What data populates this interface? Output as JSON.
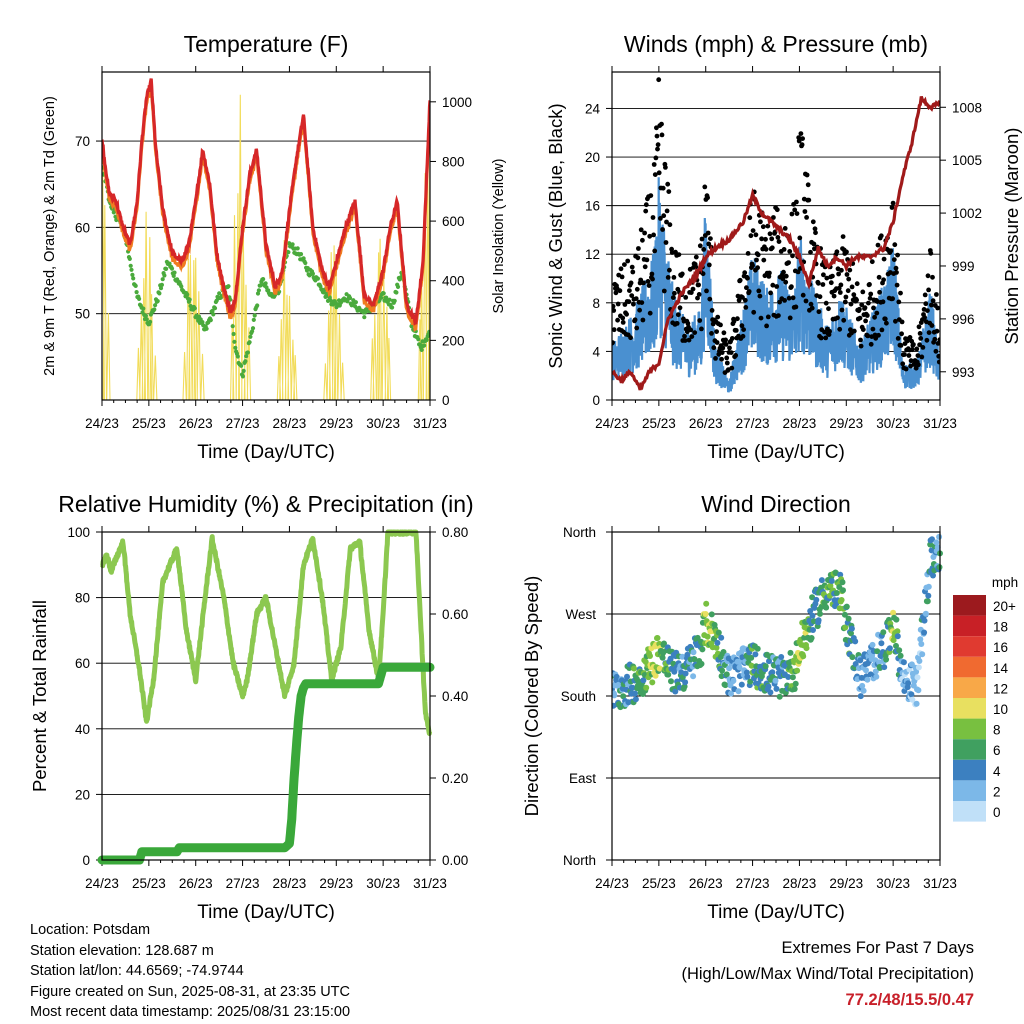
{
  "charts_common": {
    "x_ticks": [
      "24/23",
      "25/23",
      "26/23",
      "27/23",
      "28/23",
      "29/23",
      "30/23",
      "31/23"
    ],
    "x_label": "Time (Day/UTC)"
  },
  "chart_data": [
    {
      "type": "line",
      "title": "Temperature (F)",
      "xlabel": "Time (Day/UTC)",
      "ylabel": "2m & 9m T (Red, Orange) & 2m Td (Green)",
      "ylabel_right": "Solar Insolation (Yellow)",
      "xlim": [
        0,
        7
      ],
      "ylim": [
        40,
        78
      ],
      "ylim_right": [
        0,
        1100
      ],
      "yticks": [
        50,
        60,
        70
      ],
      "yticks_right": [
        0,
        200,
        400,
        600,
        800,
        1000
      ],
      "colors": {
        "t2m": "#d62728",
        "t9m": "#f07c20",
        "td": "#4aaa3c",
        "solar": "#f2dc5a"
      },
      "series": [
        {
          "key": "t2m",
          "x": [
            0,
            0.15,
            0.3,
            0.45,
            0.6,
            0.75,
            0.85,
            0.95,
            1.05,
            1.15,
            1.3,
            1.5,
            1.7,
            1.85,
            2.0,
            2.15,
            2.3,
            2.45,
            2.6,
            2.75,
            2.85,
            3.0,
            3.15,
            3.3,
            3.5,
            3.7,
            3.85,
            4.0,
            4.15,
            4.3,
            4.5,
            4.7,
            4.85,
            5.0,
            5.2,
            5.4,
            5.6,
            5.8,
            6.0,
            6.15,
            6.3,
            6.5,
            6.7,
            6.85,
            7.0
          ],
          "values": [
            70,
            64,
            63,
            60,
            58,
            63,
            70,
            75,
            77,
            69,
            62,
            57,
            56,
            58,
            63,
            69,
            65,
            57,
            53,
            50,
            52,
            60,
            66,
            69,
            58,
            53,
            55,
            62,
            68,
            73,
            60,
            55,
            53,
            56,
            60,
            63,
            52,
            51,
            55,
            60,
            63,
            51,
            49,
            56,
            75
          ]
        },
        {
          "key": "td",
          "x": [
            0,
            0.1,
            0.2,
            0.35,
            0.5,
            0.6,
            0.75,
            0.9,
            1.0,
            1.2,
            1.4,
            1.6,
            1.8,
            2.0,
            2.2,
            2.35,
            2.5,
            2.7,
            2.85,
            3.0,
            3.2,
            3.4,
            3.6,
            3.8,
            4.0,
            4.2,
            4.4,
            4.6,
            4.8,
            5.0,
            5.2,
            5.4,
            5.6,
            5.8,
            6.0,
            6.2,
            6.4,
            6.6,
            6.8,
            7.0
          ],
          "values": [
            67,
            65,
            62,
            61,
            59,
            56,
            52,
            50,
            49,
            52,
            56,
            54,
            52,
            50,
            48,
            50,
            52,
            53,
            46,
            43,
            48,
            54,
            52,
            53,
            58,
            57,
            55,
            54,
            52,
            51,
            52,
            51,
            50,
            51,
            52,
            51,
            55,
            49,
            46,
            48
          ]
        },
        {
          "key": "solar",
          "note": "daily insolation peaks",
          "day_peaks": [
            1050,
            700,
            750,
            1100,
            630,
            600,
            650,
            900
          ]
        }
      ]
    },
    {
      "type": "scatter",
      "title": "Winds (mph) & Pressure (mb)",
      "xlabel": "Time (Day/UTC)",
      "ylabel": "Sonic Wind & Gust (Blue, Black)",
      "ylabel_right": "Station Pressure (Maroon)",
      "xlim": [
        0,
        7
      ],
      "ylim": [
        0,
        27
      ],
      "ylim_right": [
        991.4,
        1010
      ],
      "yticks": [
        0,
        4,
        8,
        12,
        16,
        20,
        24
      ],
      "yticks_right": [
        993,
        996,
        999,
        1002,
        1005,
        1008
      ],
      "colors": {
        "wind": "#4a90d0",
        "gust": "#000000",
        "pressure": "#a01a1a"
      },
      "series": [
        {
          "key": "pressure",
          "x": [
            0,
            0.2,
            0.4,
            0.6,
            0.8,
            1.0,
            1.2,
            1.5,
            1.8,
            2.0,
            2.2,
            2.5,
            2.8,
            3.0,
            3.2,
            3.4,
            3.6,
            3.8,
            4.0,
            4.2,
            4.4,
            4.6,
            4.8,
            5.0,
            5.2,
            5.5,
            5.8,
            6.0,
            6.2,
            6.4,
            6.6,
            6.8,
            7.0
          ],
          "values": [
            993,
            992.5,
            993,
            992,
            993,
            993.5,
            996,
            997.5,
            998.5,
            999.5,
            1000,
            1000.5,
            1001.5,
            1003,
            1002,
            1001.5,
            1001,
            1000.5,
            999.5,
            998,
            1000,
            999,
            999.5,
            999,
            999.5,
            999.5,
            1000,
            1001.5,
            1004,
            1006,
            1008.5,
            1008,
            1008.2
          ]
        },
        {
          "key": "wind_mean",
          "x": [
            0,
            0.5,
            0.9,
            1.0,
            1.3,
            1.6,
            1.9,
            2.0,
            2.2,
            2.5,
            2.8,
            3.0,
            3.3,
            3.6,
            3.9,
            4.0,
            4.3,
            4.6,
            4.9,
            5.0,
            5.3,
            5.6,
            5.9,
            6.0,
            6.2,
            6.5,
            6.8,
            7.0
          ],
          "values": [
            3,
            5,
            8,
            12,
            6,
            4,
            5,
            11,
            3,
            1,
            5,
            8,
            6,
            7,
            6,
            9,
            6,
            4,
            6,
            5,
            3,
            5,
            7,
            9,
            2,
            2,
            6,
            2
          ]
        },
        {
          "key": "gust_mean",
          "x": [
            0,
            0.5,
            0.9,
            1.0,
            1.3,
            1.6,
            1.9,
            2.0,
            2.2,
            2.5,
            2.8,
            3.0,
            3.3,
            3.6,
            3.9,
            4.0,
            4.3,
            4.6,
            4.9,
            5.0,
            5.3,
            5.6,
            5.9,
            6.0,
            6.2,
            6.5,
            6.8,
            7.0
          ],
          "values": [
            7,
            8,
            13,
            18,
            9,
            7,
            9,
            14,
            5,
            3,
            8,
            12,
            10,
            11,
            11,
            16,
            10,
            7,
            9,
            9,
            6,
            8,
            11,
            13,
            4,
            3,
            9,
            4
          ]
        }
      ]
    },
    {
      "type": "line",
      "title": "Relative Humidity (%) & Precipitation (in)",
      "xlabel": "Time (Day/UTC)",
      "ylabel": "Percent & Total Rainfall",
      "xlim": [
        0,
        7
      ],
      "ylim": [
        0,
        100
      ],
      "ylim_right": [
        0,
        0.8
      ],
      "yticks": [
        0,
        20,
        40,
        60,
        80,
        100
      ],
      "yticks_right": [
        "0.00",
        "0.20",
        "0.40",
        "0.60",
        "0.80"
      ],
      "colors": {
        "rh": "#8cc850",
        "precip": "#3aa83a"
      },
      "series": [
        {
          "key": "rh",
          "x": [
            0,
            0.1,
            0.2,
            0.3,
            0.45,
            0.6,
            0.8,
            0.95,
            1.1,
            1.3,
            1.6,
            1.8,
            2.0,
            2.2,
            2.35,
            2.6,
            2.8,
            3.0,
            3.1,
            3.3,
            3.5,
            3.7,
            3.9,
            4.1,
            4.3,
            4.5,
            4.7,
            4.9,
            5.1,
            5.3,
            5.5,
            5.7,
            5.9,
            6.0,
            6.1,
            6.3,
            6.5,
            6.7,
            6.9,
            7.0
          ],
          "values": [
            90,
            93,
            88,
            92,
            97,
            75,
            58,
            42,
            55,
            85,
            95,
            70,
            55,
            80,
            98,
            80,
            60,
            50,
            55,
            75,
            80,
            65,
            50,
            60,
            90,
            98,
            80,
            55,
            65,
            95,
            97,
            70,
            55,
            75,
            100,
            100,
            100,
            100,
            45,
            38
          ]
        },
        {
          "key": "precip",
          "x": [
            0,
            0.8,
            0.85,
            1.6,
            1.65,
            2.5,
            3.5,
            3.9,
            4.0,
            4.05,
            4.1,
            4.15,
            4.2,
            4.25,
            4.3,
            4.35,
            4.4,
            5.0,
            5.5,
            5.9,
            6.0,
            6.5,
            7.0
          ],
          "values": [
            0,
            0,
            0.02,
            0.02,
            0.03,
            0.03,
            0.03,
            0.03,
            0.04,
            0.1,
            0.2,
            0.28,
            0.35,
            0.4,
            0.42,
            0.43,
            0.43,
            0.43,
            0.43,
            0.43,
            0.47,
            0.47,
            0.47
          ]
        }
      ]
    },
    {
      "type": "scatter",
      "title": "Wind Direction",
      "xlabel": "Time (Day/UTC)",
      "ylabel": "Direction (Colored By Speed)",
      "xlim": [
        0,
        7
      ],
      "ylim": [
        0,
        360
      ],
      "ytick_values": [
        0,
        90,
        180,
        270,
        360
      ],
      "yticks": [
        "North",
        "East",
        "South",
        "West",
        "North"
      ],
      "colorbar": {
        "title": "mph",
        "labels": [
          "20+",
          "18",
          "16",
          "14",
          "12",
          "10",
          "8",
          "6",
          "4",
          "2",
          "0"
        ],
        "colors": [
          "#9c1a1e",
          "#c82026",
          "#e03a30",
          "#f06a30",
          "#f8a848",
          "#e8e060",
          "#78c040",
          "#40a060",
          "#3c80c0",
          "#7cb8e8",
          "#c0e0f8"
        ]
      },
      "series": [
        {
          "key": "direction",
          "x": [
            0,
            0.3,
            0.6,
            0.9,
            1.0,
            1.3,
            1.6,
            1.9,
            2.0,
            2.2,
            2.5,
            2.8,
            3.0,
            3.3,
            3.6,
            3.9,
            4.0,
            4.3,
            4.6,
            4.9,
            5.0,
            5.3,
            5.6,
            5.9,
            6.0,
            6.2,
            6.5,
            6.8,
            7.0
          ],
          "values": [
            185,
            190,
            200,
            220,
            230,
            205,
            210,
            235,
            260,
            245,
            200,
            210,
            215,
            205,
            200,
            210,
            230,
            270,
            300,
            290,
            260,
            200,
            220,
            240,
            265,
            200,
            190,
            330,
            340
          ],
          "speed": [
            3,
            4,
            6,
            9,
            8,
            5,
            4,
            5,
            9,
            7,
            3,
            3,
            6,
            5,
            4,
            7,
            9,
            5,
            6,
            7,
            6,
            3,
            3,
            5,
            8,
            2,
            2,
            5,
            4
          ]
        }
      ]
    }
  ],
  "info": {
    "location": "Location: Potsdam",
    "elevation": "Station elevation: 128.687 m",
    "latlon": "Station lat/lon: 44.6569; -74.9744",
    "created": "Figure created on Sun, 2025-08-31, at 23:35 UTC",
    "recent": "Most recent data timestamp: 2025/08/31 23:15:00"
  },
  "extremes": {
    "title": "Extremes For Past 7 Days",
    "subtitle": "(High/Low/Max Wind/Total Precipitation)",
    "values": "77.2/48/15.5/0.47"
  }
}
